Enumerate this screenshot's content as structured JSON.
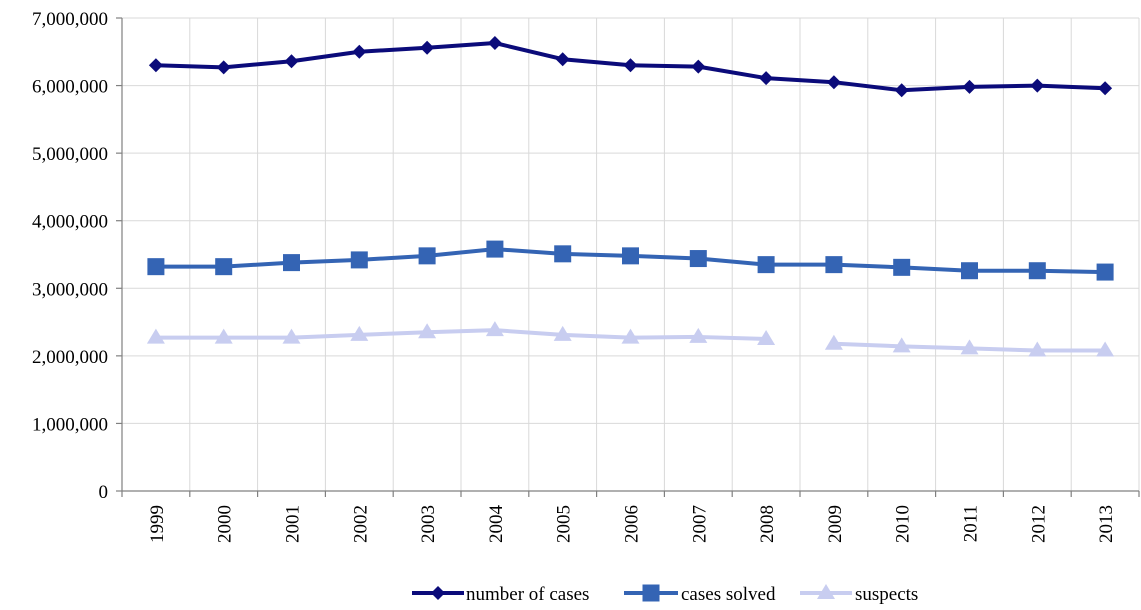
{
  "chart_data": {
    "type": "line",
    "title": "",
    "xlabel": "",
    "ylabel": "",
    "categories": [
      "1999",
      "2000",
      "2001",
      "2002",
      "2003",
      "2004",
      "2005",
      "2006",
      "2007",
      "2008",
      "2009",
      "2010",
      "2011",
      "2012",
      "2013"
    ],
    "ylim": [
      0,
      7000000
    ],
    "yticks": [
      0,
      1000000,
      2000000,
      3000000,
      4000000,
      5000000,
      6000000,
      7000000
    ],
    "ytick_labels": [
      "0",
      "1,000,000",
      "2,000,000",
      "3,000,000",
      "4,000,000",
      "5,000,000",
      "6,000,000",
      "7,000,000"
    ],
    "grid": true,
    "legend_position": "bottom-center",
    "series": [
      {
        "name": "number of cases",
        "color": "#0b0b7a",
        "marker": "diamond",
        "values": [
          6300000,
          6270000,
          6360000,
          6500000,
          6560000,
          6630000,
          6390000,
          6300000,
          6280000,
          6110000,
          6050000,
          5930000,
          5980000,
          6000000,
          5960000
        ]
      },
      {
        "name": "cases solved",
        "color": "#3464b4",
        "marker": "square",
        "values": [
          3320000,
          3320000,
          3380000,
          3420000,
          3480000,
          3580000,
          3510000,
          3480000,
          3440000,
          3350000,
          3350000,
          3310000,
          3260000,
          3260000,
          3240000
        ]
      },
      {
        "name": "suspects",
        "color": "#c8cdf0",
        "marker": "triangle",
        "values": [
          2270000,
          2270000,
          2270000,
          2310000,
          2350000,
          2380000,
          2310000,
          2270000,
          2280000,
          2250000,
          null,
          2140000,
          2110000,
          2080000,
          2080000
        ],
        "extra_points": [
          {
            "category": "2009",
            "value": 2180000,
            "connected_to_previous": false
          }
        ]
      }
    ]
  }
}
